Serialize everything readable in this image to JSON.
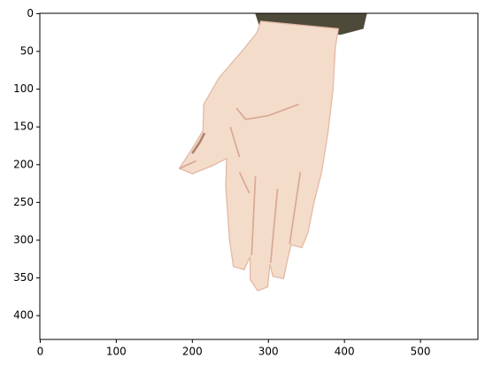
{
  "chart_data": {
    "type": "image",
    "xlim": [
      -0.5,
      575.5
    ],
    "ylim": [
      431.5,
      -0.5
    ],
    "xticks": [
      0,
      100,
      200,
      300,
      400,
      500
    ],
    "yticks": [
      0,
      50,
      100,
      150,
      200,
      250,
      300,
      350,
      400
    ]
  }
}
